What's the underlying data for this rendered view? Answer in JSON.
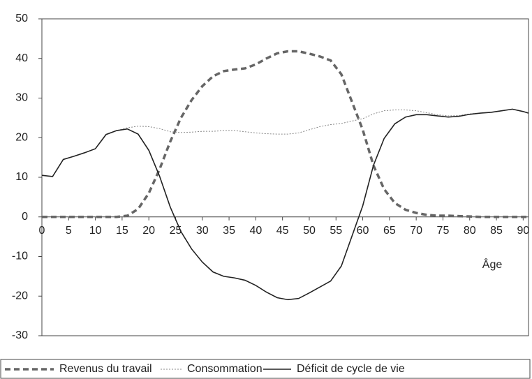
{
  "chart_data": {
    "type": "line",
    "x_label": "Âge",
    "x": [
      0,
      2,
      4,
      6,
      8,
      10,
      12,
      14,
      16,
      18,
      20,
      22,
      24,
      26,
      28,
      30,
      32,
      34,
      36,
      38,
      40,
      42,
      44,
      46,
      48,
      50,
      52,
      54,
      56,
      58,
      60,
      62,
      64,
      66,
      68,
      70,
      72,
      74,
      76,
      78,
      80,
      82,
      84,
      86,
      88,
      90,
      91
    ],
    "series": [
      {
        "name": "Revenus du travail",
        "color": "#666666",
        "style": "dashed",
        "values": [
          0,
          0,
          0,
          0,
          0,
          0,
          0,
          0,
          0.3,
          2,
          6,
          12,
          19,
          25,
          29.5,
          33,
          35.5,
          36.8,
          37.2,
          37.5,
          38.5,
          40,
          41.3,
          41.8,
          41.8,
          41.2,
          40.5,
          39.5,
          36,
          29,
          22,
          13,
          7,
          3.5,
          1.8,
          1,
          0.5,
          0.3,
          0.3,
          0.2,
          0.1,
          0,
          0,
          0,
          0,
          0,
          0
        ]
      },
      {
        "name": "Consommation",
        "color": "#888888",
        "style": "dotted",
        "values": [
          10.5,
          10.2,
          14.5,
          15.3,
          16.2,
          17.2,
          20.8,
          21.8,
          22.5,
          22.9,
          22.8,
          22.3,
          21.5,
          21.3,
          21.4,
          21.6,
          21.6,
          21.8,
          21.8,
          21.5,
          21.2,
          21,
          20.9,
          20.9,
          21.2,
          22,
          22.8,
          23.3,
          23.6,
          24.2,
          24.8,
          26,
          26.8,
          27,
          27,
          26.8,
          26.3,
          25.8,
          25.5,
          25.6,
          26,
          26.2,
          26.4,
          26.8,
          27.2,
          26.6,
          26.2
        ]
      },
      {
        "name": "Déficit de cycle de vie",
        "color": "#222222",
        "style": "solid",
        "values": [
          10.5,
          10.2,
          14.5,
          15.3,
          16.2,
          17.2,
          20.8,
          21.8,
          22.2,
          20.9,
          16.8,
          10.3,
          2.5,
          -3.7,
          -8.1,
          -11.4,
          -13.9,
          -15,
          -15.4,
          -16,
          -17.3,
          -19,
          -20.4,
          -20.9,
          -20.6,
          -19.2,
          -17.7,
          -16.2,
          -12.4,
          -4.8,
          2.8,
          13,
          19.8,
          23.5,
          25.2,
          25.8,
          25.8,
          25.5,
          25.2,
          25.4,
          25.9,
          26.2,
          26.4,
          26.8,
          27.2,
          26.6,
          26.2
        ]
      }
    ],
    "xlim": [
      0,
      91
    ],
    "xticks": [
      0,
      5,
      10,
      15,
      20,
      25,
      30,
      35,
      40,
      45,
      50,
      55,
      60,
      65,
      70,
      75,
      80,
      85,
      90
    ],
    "ylim": [
      -30,
      50
    ],
    "yticks": [
      -30,
      -20,
      -10,
      0,
      10,
      20,
      30,
      40,
      50
    ],
    "legend": "bottom"
  }
}
